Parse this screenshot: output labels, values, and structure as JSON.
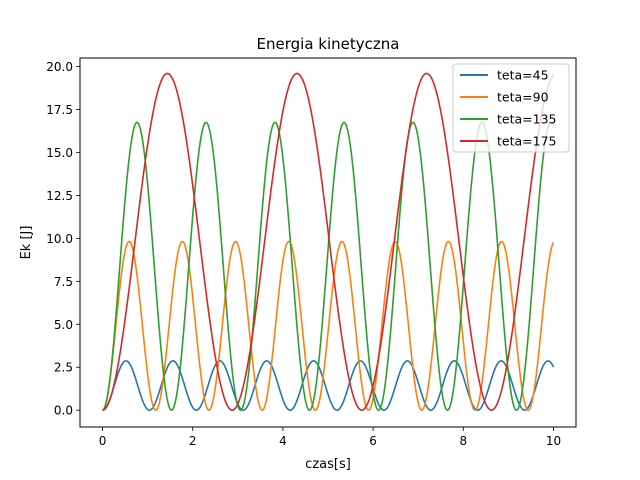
{
  "chart_data": {
    "type": "line",
    "title": "Energia kinetyczna",
    "xlabel": "czas[s]",
    "ylabel": "Ek [J]",
    "xlim": [
      -0.5,
      10.5
    ],
    "ylim": [
      -0.98,
      20.5
    ],
    "xticks": [
      0,
      2,
      4,
      6,
      8,
      10
    ],
    "yticks": [
      0.0,
      2.5,
      5.0,
      7.5,
      10.0,
      12.5,
      15.0,
      17.5,
      20.0
    ],
    "grid": false,
    "legend_position": "top-right",
    "series": [
      {
        "name": "teta=45",
        "color": "#1f77b4",
        "model": {
          "amplitude": 2.87,
          "period": 2.08,
          "t_max": 10
        }
      },
      {
        "name": "teta=90",
        "color": "#ff7f0e",
        "model": {
          "amplitude": 9.82,
          "period": 2.36,
          "t_max": 10
        }
      },
      {
        "name": "teta=135",
        "color": "#2ca02c",
        "model": {
          "amplitude": 16.75,
          "period": 3.06,
          "t_max": 10
        }
      },
      {
        "name": "teta=175",
        "color": "#d62728",
        "model": {
          "amplitude": 19.6,
          "period": 5.75,
          "t_max": 10
        }
      }
    ]
  }
}
